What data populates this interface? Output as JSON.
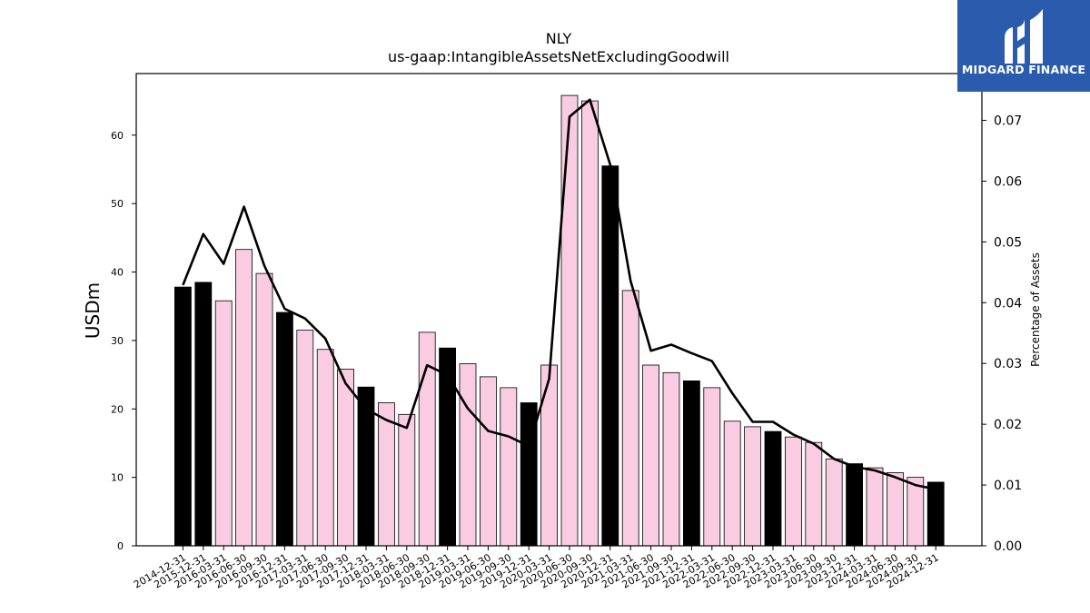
{
  "chart_data": {
    "type": "bar",
    "title": "NLY",
    "subtitle": "us-gaap:IntangibleAssetsNetExcludingGoodwill",
    "ylabel": "USDm",
    "y2label": "Percentage of Assets",
    "ylim": [
      0,
      69
    ],
    "y2lim": [
      0,
      0.0777
    ],
    "yticks": [
      0,
      10,
      20,
      30,
      40,
      50,
      60
    ],
    "y2ticks": [
      "0.00",
      "0.01",
      "0.02",
      "0.03",
      "0.04",
      "0.05",
      "0.06",
      "0.07"
    ],
    "categories": [
      "2014-12-31",
      "2015-12-31",
      "2016-03-31",
      "2016-06-30",
      "2016-09-30",
      "2016-12-31",
      "2017-03-31",
      "2017-06-30",
      "2017-09-30",
      "2017-12-31",
      "2018-03-31",
      "2018-06-30",
      "2018-09-30",
      "2018-12-31",
      "2019-03-31",
      "2019-06-30",
      "2019-09-30",
      "2019-12-31",
      "2020-03-31",
      "2020-06-30",
      "2020-09-30",
      "2020-12-31",
      "2021-03-31",
      "2021-06-30",
      "2021-09-30",
      "2021-12-31",
      "2022-03-31",
      "2022-06-30",
      "2022-09-30",
      "2022-12-31",
      "2023-03-31",
      "2023-06-30",
      "2023-09-30",
      "2023-12-31",
      "2024-03-31",
      "2024-06-30",
      "2024-09-30",
      "2024-12-31"
    ],
    "series": [
      {
        "type": "bar",
        "values": [
          37.8,
          38.5,
          35.8,
          43.3,
          39.8,
          34.1,
          31.5,
          28.7,
          25.8,
          23.2,
          20.9,
          19.2,
          31.2,
          28.9,
          26.6,
          24.7,
          23.1,
          20.9,
          26.4,
          65.8,
          65.0,
          55.5,
          37.3,
          26.4,
          25.3,
          24.1,
          23.1,
          18.2,
          17.4,
          16.7,
          15.9,
          15.1,
          12.7,
          12.0,
          11.4,
          10.7,
          10.0,
          9.3
        ],
        "year_end_color": "#000000",
        "quarter_color": "#f9cce2"
      },
      {
        "type": "line",
        "axis": "right",
        "color": "#000000",
        "values": [
          0.0429,
          0.0513,
          0.0464,
          0.0558,
          0.0461,
          0.039,
          0.0374,
          0.0341,
          0.0267,
          0.0225,
          0.0207,
          0.0194,
          0.0297,
          0.0281,
          0.0226,
          0.0189,
          0.018,
          0.0164,
          0.0275,
          0.0706,
          0.0734,
          0.0627,
          0.0436,
          0.0321,
          0.0331,
          0.0317,
          0.0304,
          0.0251,
          0.0204,
          0.0204,
          0.0183,
          0.0168,
          0.0143,
          0.013,
          0.0124,
          0.0113,
          0.01,
          0.0093
        ]
      }
    ],
    "grid": false
  },
  "logo": {
    "text": "MIDGARD FINANCE"
  }
}
